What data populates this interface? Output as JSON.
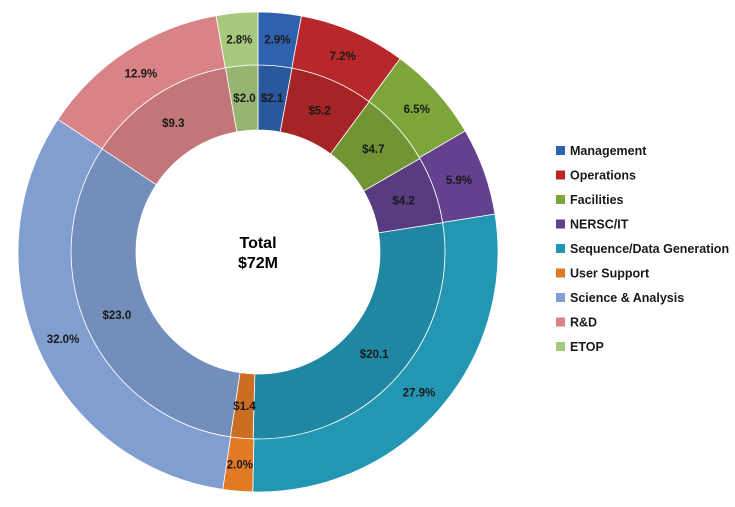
{
  "chart_data": {
    "type": "pie",
    "center_label": [
      "Total",
      "$72M"
    ],
    "categories": [
      "Management",
      "Operations",
      "Facilities",
      "NERSC/IT",
      "Sequence/Data Generation",
      "User Support",
      "Science & Analysis",
      "R&D",
      "ETOP"
    ],
    "series": [
      {
        "values": [
          2.1,
          5.2,
          4.7,
          4.2,
          20.1,
          1.4,
          23.0,
          9.3,
          2.0
        ],
        "labels": [
          "$2.1",
          "$5.2",
          "$4.7",
          "$4.2",
          "$20.1",
          "$1.4",
          "$23.0",
          "$9.3",
          "$2.0"
        ]
      },
      {
        "values": [
          2.9,
          7.2,
          6.5,
          5.9,
          27.9,
          2.0,
          32.0,
          12.9,
          2.8
        ],
        "labels": [
          "2.9%",
          "7.2%",
          "6.5%",
          "5.9%",
          "27.9%",
          "2.0%",
          "32.0%",
          "12.9%",
          "2.8%"
        ]
      }
    ],
    "colors": [
      "#2E62AE",
      "#B8272A",
      "#7DA63A",
      "#63418E",
      "#2296B3",
      "#E27A25",
      "#809ECF",
      "#D98386",
      "#A7C97D"
    ],
    "legend_position": "right"
  }
}
